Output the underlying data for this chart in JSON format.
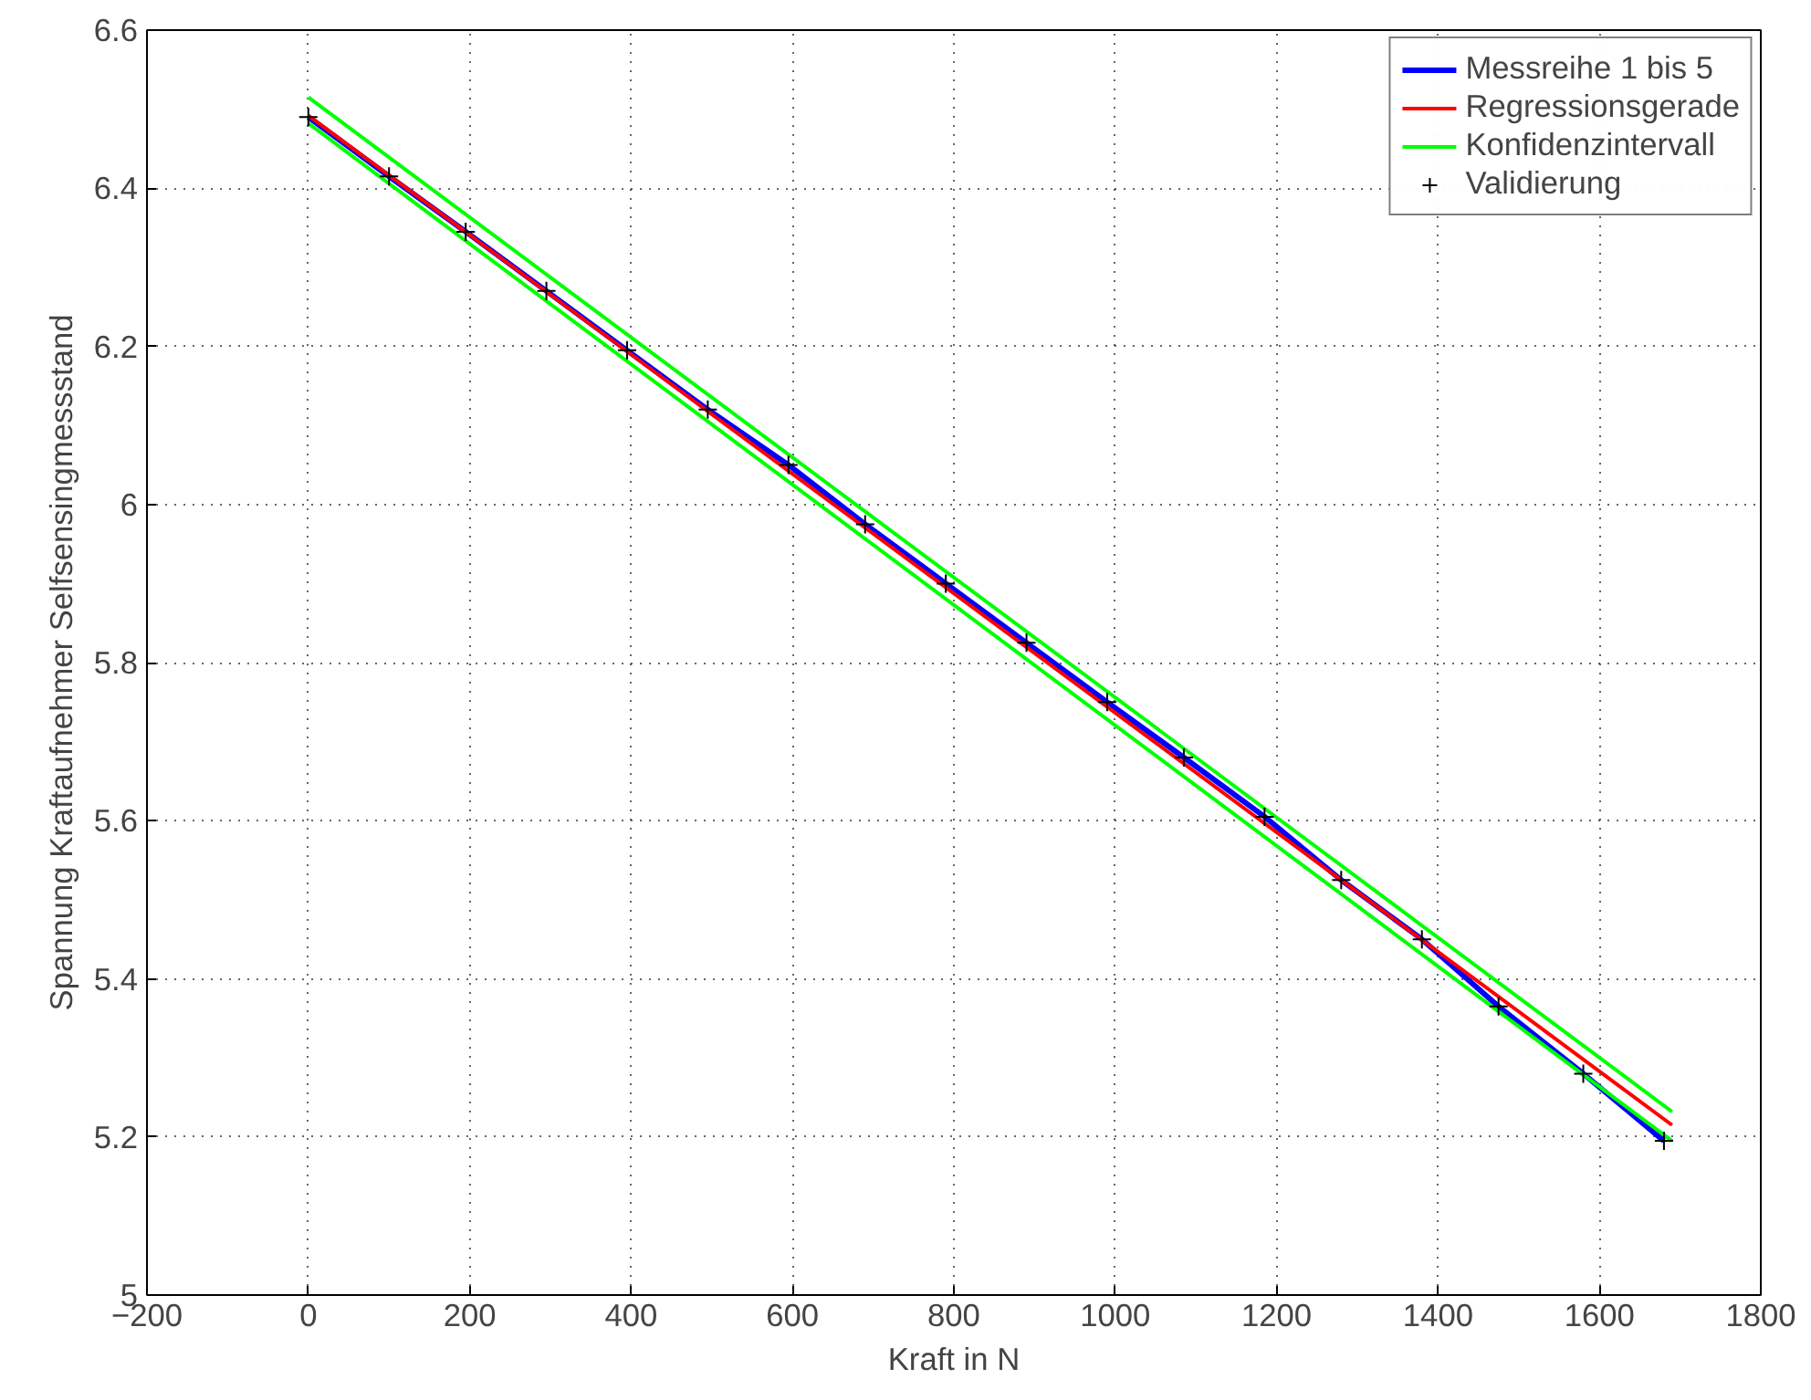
{
  "chart_data": {
    "type": "line",
    "xlabel": "Kraft in N",
    "ylabel": "Spannung Kraftaufnehmer Selfsensingmessstand",
    "xlim": [
      -200,
      1800
    ],
    "xticks": [
      {
        "value": -200,
        "label": "−200"
      },
      0,
      200,
      400,
      600,
      800,
      1000,
      1200,
      1400,
      1600,
      1800
    ],
    "ylim": [
      5,
      6.6
    ],
    "yticks": [
      5,
      5.2,
      5.4,
      5.6,
      5.8,
      6,
      6.2,
      6.4,
      6.6
    ],
    "grid": true,
    "legend": "top right",
    "line_style": "solid",
    "series": [
      {
        "name": "Messreihe 1 bis 5",
        "color": "#0000ff",
        "x": [
          0,
          100,
          195,
          295,
          395,
          495,
          595,
          690,
          790,
          890,
          990,
          1085,
          1185,
          1280,
          1380,
          1475,
          1580,
          1680
        ],
        "values": [
          6.49,
          6.415,
          6.345,
          6.27,
          6.195,
          6.12,
          6.05,
          5.975,
          5.9,
          5.825,
          5.75,
          5.68,
          5.605,
          5.525,
          5.45,
          5.365,
          5.28,
          5.195
        ]
      },
      {
        "name": "Regressionsgerade",
        "color": "#ff0000",
        "x": [
          0,
          1690
        ],
        "values": [
          6.492,
          5.215
        ]
      },
      {
        "name": "Konfidenzintervall",
        "color": "#00ff00",
        "x": [
          0,
          1690
        ],
        "values": [
          6.515,
          5.232
        ]
      },
      {
        "color": "#00ff00",
        "x": [
          0,
          1690
        ],
        "values": [
          6.482,
          5.195
        ]
      },
      {
        "name": "Validierung",
        "type": "scatter",
        "marker": "cross",
        "color": "#000000",
        "x": [
          0,
          100,
          195,
          295,
          395,
          495,
          595,
          690,
          790,
          890,
          990,
          1085,
          1185,
          1280,
          1380,
          1475,
          1580,
          1680
        ],
        "values": [
          6.49,
          6.415,
          6.345,
          6.27,
          6.195,
          6.12,
          6.05,
          5.975,
          5.9,
          5.825,
          5.75,
          5.68,
          5.605,
          5.525,
          5.45,
          5.365,
          5.28,
          5.195
        ]
      }
    ]
  }
}
